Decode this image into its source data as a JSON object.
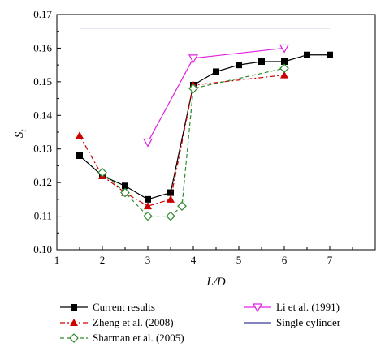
{
  "chart_data": {
    "type": "line",
    "xlabel": "L/D",
    "ylabel_main": "S",
    "ylabel_sub": "t",
    "xlim": [
      1,
      8
    ],
    "ylim": [
      0.1,
      0.17
    ],
    "xticks": [
      1,
      2,
      3,
      4,
      5,
      6,
      7
    ],
    "yticks": [
      0.1,
      0.11,
      0.12,
      0.13,
      0.14,
      0.15,
      0.16,
      0.17
    ],
    "xtick_labels": [
      "1",
      "2",
      "3",
      "4",
      "5",
      "6",
      "7"
    ],
    "ytick_labels": [
      "0.10",
      "0.11",
      "0.12",
      "0.13",
      "0.14",
      "0.15",
      "0.16",
      "0.17"
    ],
    "grid": false,
    "legend_position": "bottom",
    "series": [
      {
        "name": "Current results",
        "color": "#000000",
        "marker": "square-filled",
        "line": "solid",
        "x": [
          1.5,
          2.0,
          2.5,
          3.0,
          3.5,
          4.0,
          4.5,
          5.0,
          5.5,
          6.0,
          6.5,
          7.0
        ],
        "y": [
          0.128,
          0.122,
          0.119,
          0.115,
          0.117,
          0.149,
          0.153,
          0.155,
          0.156,
          0.156,
          0.158,
          0.158
        ]
      },
      {
        "name": "Zheng et al. (2008)",
        "color": "#cc0000",
        "marker": "triangle-filled",
        "line": "dashdot",
        "x": [
          1.5,
          2.0,
          2.5,
          3.0,
          3.5,
          4.0,
          6.0
        ],
        "y": [
          0.134,
          0.122,
          0.117,
          0.113,
          0.115,
          0.149,
          0.152
        ]
      },
      {
        "name": "Sharman et al. (2005)",
        "color": "#2e8b2e",
        "marker": "diamond-open",
        "line": "dashed",
        "x": [
          2.0,
          2.5,
          3.0,
          3.5,
          3.75,
          4.0,
          6.0
        ],
        "y": [
          0.123,
          0.117,
          0.11,
          0.11,
          0.113,
          0.148,
          0.154
        ]
      },
      {
        "name": "Li et al. (1991)",
        "color": "#e020e0",
        "marker": "triangle-down-open",
        "line": "solid",
        "x": [
          3.0,
          4.0,
          6.0
        ],
        "y": [
          0.132,
          0.157,
          0.16
        ]
      },
      {
        "name": "Single cylinder",
        "color": "#3a3a9a",
        "marker": "none",
        "line": "solid",
        "x": [
          1.5,
          7.0
        ],
        "y": [
          0.166,
          0.166
        ]
      }
    ]
  }
}
